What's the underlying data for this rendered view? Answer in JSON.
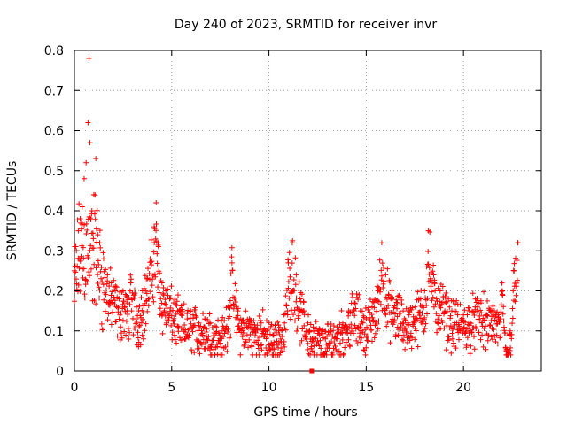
{
  "chart_data": {
    "type": "scatter",
    "title": "Day 240 of 2023, SRMTID for receiver invr",
    "xlabel": "GPS time / hours",
    "ylabel": "SRMTID / TECUs",
    "xlim": [
      0,
      24
    ],
    "ylim": [
      0,
      0.8
    ],
    "grid": true,
    "marker": "+",
    "color": "#ff0000",
    "x_ticks": [
      0,
      5,
      10,
      15,
      20
    ],
    "x_tick_labels": [
      "0",
      "5",
      "10",
      "15",
      "20"
    ],
    "y_ticks": [
      0,
      0.1,
      0.2,
      0.3,
      0.4,
      0.5,
      0.6,
      0.7,
      0.8
    ],
    "y_tick_labels": [
      "0",
      "0.1",
      "0.2",
      "0.3",
      "0.4",
      "0.5",
      "0.6",
      "0.7",
      "0.8"
    ],
    "series": [
      {
        "name": "SRMTID",
        "x": [
          0.0,
          0.1,
          0.2,
          0.3,
          0.4,
          0.5,
          0.6,
          0.7,
          0.75,
          0.8,
          0.9,
          1.0,
          1.1,
          1.2,
          1.3,
          1.5,
          1.7,
          1.9,
          2.1,
          2.3,
          2.5,
          2.7,
          2.9,
          3.1,
          3.3,
          3.5,
          3.7,
          3.9,
          4.1,
          4.2,
          4.3,
          4.5,
          4.7,
          4.9,
          5.1,
          5.3,
          5.5,
          5.8,
          6.1,
          6.4,
          6.7,
          7.0,
          7.3,
          7.6,
          7.9,
          8.1,
          8.4,
          8.7,
          9.0,
          9.3,
          9.6,
          9.9,
          10.2,
          10.5,
          10.8,
          11.0,
          11.2,
          11.4,
          11.6,
          11.8,
          12.0,
          12.3,
          12.6,
          12.9,
          13.2,
          13.5,
          13.8,
          14.1,
          14.4,
          14.7,
          15.0,
          15.3,
          15.6,
          15.8,
          16.0,
          16.3,
          16.6,
          16.9,
          17.2,
          17.5,
          17.8,
          18.0,
          18.2,
          18.5,
          18.8,
          19.1,
          19.4,
          19.7,
          20.0,
          20.3,
          20.6,
          20.9,
          21.2,
          21.5,
          21.8,
          22.0,
          22.2,
          22.4,
          22.6,
          22.8
        ],
        "y": [
          0.25,
          0.3,
          0.35,
          0.38,
          0.41,
          0.48,
          0.52,
          0.62,
          0.78,
          0.57,
          0.4,
          0.44,
          0.53,
          0.34,
          0.32,
          0.28,
          0.24,
          0.22,
          0.2,
          0.18,
          0.2,
          0.17,
          0.22,
          0.19,
          0.15,
          0.2,
          0.23,
          0.28,
          0.36,
          0.42,
          0.32,
          0.22,
          0.2,
          0.18,
          0.17,
          0.15,
          0.14,
          0.13,
          0.14,
          0.12,
          0.13,
          0.12,
          0.11,
          0.1,
          0.16,
          0.27,
          0.15,
          0.12,
          0.13,
          0.11,
          0.12,
          0.1,
          0.09,
          0.1,
          0.12,
          0.27,
          0.32,
          0.24,
          0.18,
          0.15,
          0.12,
          0.1,
          0.09,
          0.08,
          0.1,
          0.11,
          0.12,
          0.15,
          0.17,
          0.15,
          0.13,
          0.16,
          0.2,
          0.32,
          0.24,
          0.18,
          0.17,
          0.15,
          0.14,
          0.16,
          0.18,
          0.2,
          0.35,
          0.22,
          0.2,
          0.17,
          0.15,
          0.14,
          0.14,
          0.15,
          0.16,
          0.17,
          0.14,
          0.15,
          0.13,
          0.2,
          0.05,
          0.1,
          0.25,
          0.32
        ]
      }
    ],
    "annotation": {
      "x": 12.2,
      "y": 0.0,
      "label": ""
    }
  }
}
